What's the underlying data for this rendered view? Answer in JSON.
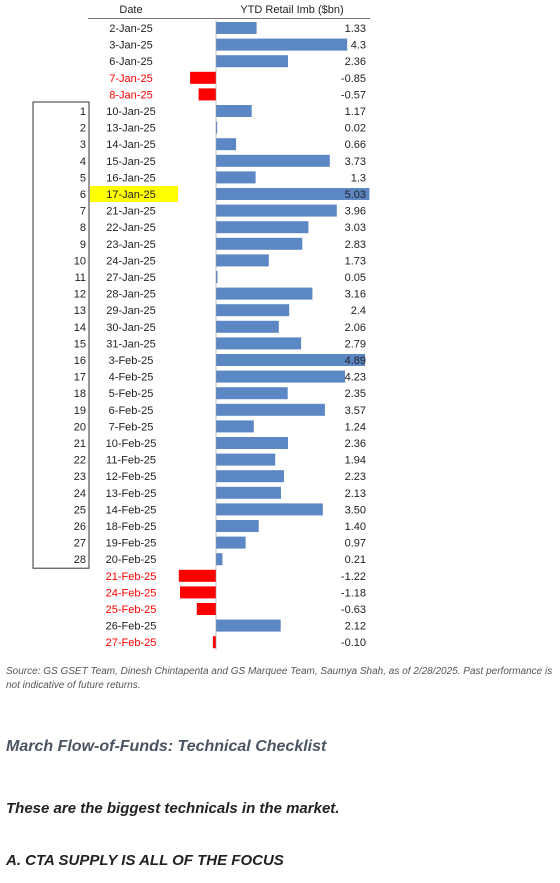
{
  "chart_data": {
    "type": "bar",
    "orientation": "horizontal",
    "header": {
      "date_label": "Date",
      "value_label": "YTD Retail Imb ($bn)"
    },
    "series": [
      {
        "name": "YTD Retail Imb ($bn)"
      }
    ],
    "colors": {
      "positive": "#5b87c5",
      "negative": "#ff0000",
      "highlight": "#ffff00",
      "count_box": "#333333"
    },
    "highlight_date": "17-Jan-25",
    "rows": [
      {
        "date": "2-Jan-25",
        "value": 1.33,
        "label": "1.33"
      },
      {
        "date": "3-Jan-25",
        "value": 4.3,
        "label": "4.3"
      },
      {
        "date": "6-Jan-25",
        "value": 2.36,
        "label": "2.36"
      },
      {
        "date": "7-Jan-25",
        "value": -0.85,
        "label": "-0.85"
      },
      {
        "date": "8-Jan-25",
        "value": -0.57,
        "label": "-0.57"
      },
      {
        "date": "10-Jan-25",
        "value": 1.17,
        "label": "1.17",
        "count": "1"
      },
      {
        "date": "13-Jan-25",
        "value": 0.02,
        "label": "0.02",
        "count": "2"
      },
      {
        "date": "14-Jan-25",
        "value": 0.66,
        "label": "0.66",
        "count": "3"
      },
      {
        "date": "15-Jan-25",
        "value": 3.73,
        "label": "3.73",
        "count": "4"
      },
      {
        "date": "16-Jan-25",
        "value": 1.3,
        "label": "1.3",
        "count": "5"
      },
      {
        "date": "17-Jan-25",
        "value": 5.03,
        "label": "5.03",
        "count": "6"
      },
      {
        "date": "21-Jan-25",
        "value": 3.96,
        "label": "3.96",
        "count": "7"
      },
      {
        "date": "22-Jan-25",
        "value": 3.03,
        "label": "3.03",
        "count": "8"
      },
      {
        "date": "23-Jan-25",
        "value": 2.83,
        "label": "2.83",
        "count": "9"
      },
      {
        "date": "24-Jan-25",
        "value": 1.73,
        "label": "1.73",
        "count": "10"
      },
      {
        "date": "27-Jan-25",
        "value": 0.05,
        "label": "0.05",
        "count": "11"
      },
      {
        "date": "28-Jan-25",
        "value": 3.16,
        "label": "3.16",
        "count": "12"
      },
      {
        "date": "29-Jan-25",
        "value": 2.4,
        "label": "2.4",
        "count": "13"
      },
      {
        "date": "30-Jan-25",
        "value": 2.06,
        "label": "2.06",
        "count": "14"
      },
      {
        "date": "31-Jan-25",
        "value": 2.79,
        "label": "2.79",
        "count": "15"
      },
      {
        "date": "3-Feb-25",
        "value": 4.89,
        "label": "4.89",
        "count": "16"
      },
      {
        "date": "4-Feb-25",
        "value": 4.23,
        "label": "4.23",
        "count": "17"
      },
      {
        "date": "5-Feb-25",
        "value": 2.35,
        "label": "2.35",
        "count": "18"
      },
      {
        "date": "6-Feb-25",
        "value": 3.57,
        "label": "3.57",
        "count": "19"
      },
      {
        "date": "7-Feb-25",
        "value": 1.24,
        "label": "1.24",
        "count": "20"
      },
      {
        "date": "10-Feb-25",
        "value": 2.36,
        "label": "2.36",
        "count": "21"
      },
      {
        "date": "11-Feb-25",
        "value": 1.94,
        "label": "1.94",
        "count": "22"
      },
      {
        "date": "12-Feb-25",
        "value": 2.23,
        "label": "2.23",
        "count": "23"
      },
      {
        "date": "13-Feb-25",
        "value": 2.13,
        "label": "2.13",
        "count": "24"
      },
      {
        "date": "14-Feb-25",
        "value": 3.5,
        "label": "3.50",
        "count": "25"
      },
      {
        "date": "18-Feb-25",
        "value": 1.4,
        "label": "1.40",
        "count": "26"
      },
      {
        "date": "19-Feb-25",
        "value": 0.97,
        "label": "0.97",
        "count": "27"
      },
      {
        "date": "20-Feb-25",
        "value": 0.21,
        "label": "0.21",
        "count": "28"
      },
      {
        "date": "21-Feb-25",
        "value": -1.22,
        "label": "-1.22"
      },
      {
        "date": "24-Feb-25",
        "value": -1.18,
        "label": "-1.18"
      },
      {
        "date": "25-Feb-25",
        "value": -0.63,
        "label": "-0.63"
      },
      {
        "date": "26-Feb-25",
        "value": 2.12,
        "label": "2.12"
      },
      {
        "date": "27-Feb-25",
        "value": -0.1,
        "label": "-0.10"
      }
    ]
  },
  "text": {
    "source": "Source: GS GSET Team, Dinesh Chintapenta and GS Marquee Team, Saumya Shah, as of 2/28/2025. Past performance is not indicative of future returns.",
    "section_title": "March Flow-of-Funds: Technical Checklist",
    "subhead": "These are the biggest technicals in the market.",
    "cta_heading": "A. CTA SUPPLY IS ALL OF THE FOCUS"
  }
}
